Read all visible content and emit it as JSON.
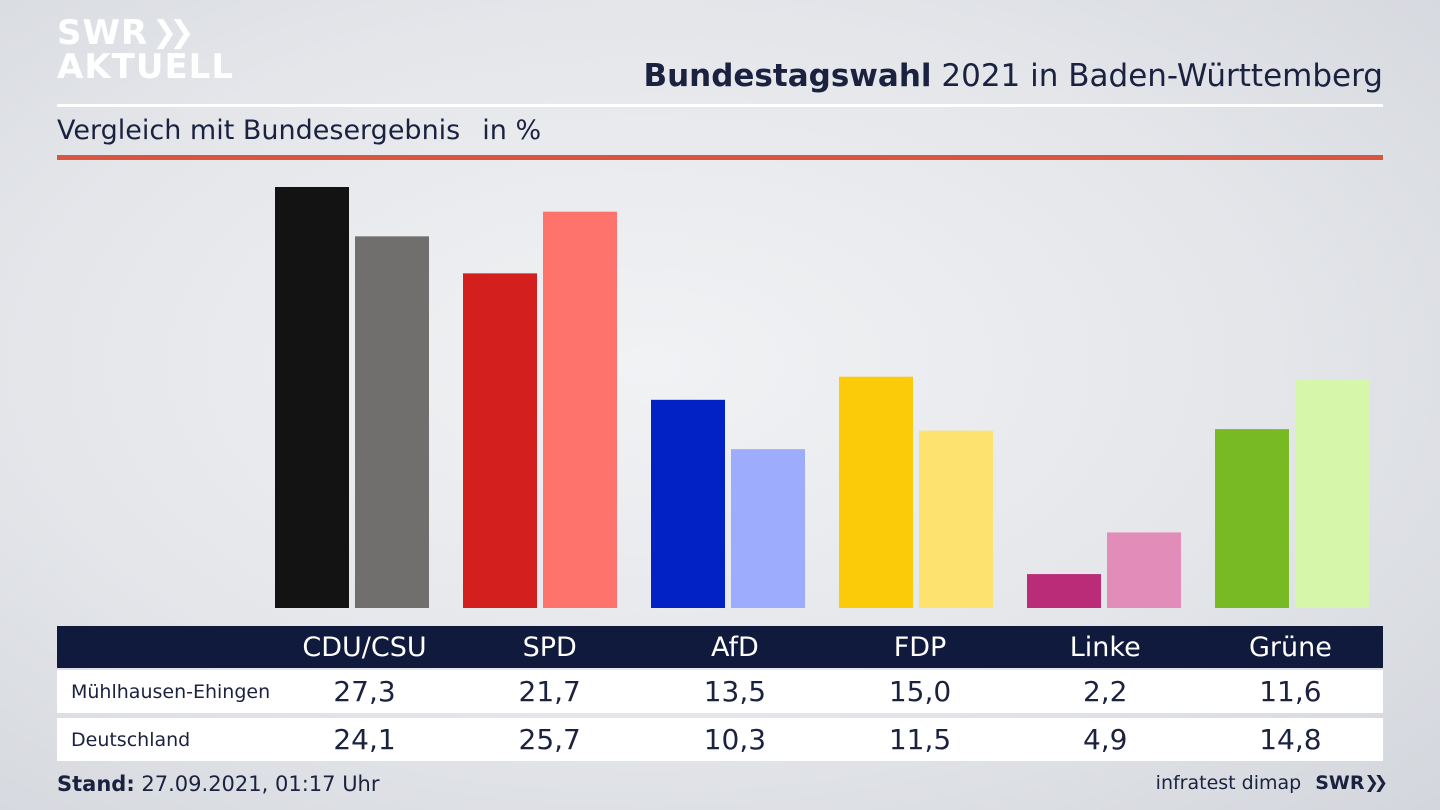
{
  "logo": {
    "line1": "SWR",
    "line2": "AKTUELL",
    "chevrons": "❯❯"
  },
  "header": {
    "title_bold": "Bundestagswahl",
    "title_rest": "2021 in Baden-Württemberg",
    "subtitle": "Vergleich mit Bundesergebnis",
    "unit": "in %"
  },
  "chart_data": {
    "type": "bar",
    "title": "Bundestagswahl 2021 in Baden-Württemberg",
    "subtitle": "Vergleich mit Bundesergebnis",
    "unit": "in %",
    "categories": [
      "CDU/CSU",
      "SPD",
      "AfD",
      "FDP",
      "Linke",
      "Grüne"
    ],
    "series": [
      {
        "name": "Mühlhausen-Ehingen",
        "values": [
          27.3,
          21.7,
          13.5,
          15.0,
          2.2,
          11.6
        ],
        "values_label": [
          "27,3",
          "21,7",
          "13,5",
          "15,0",
          "2,2",
          "11,6"
        ]
      },
      {
        "name": "Deutschland",
        "values": [
          24.1,
          25.7,
          10.3,
          11.5,
          4.9,
          14.8
        ],
        "values_label": [
          "24,1",
          "25,7",
          "10,3",
          "11,5",
          "4,9",
          "14,8"
        ]
      }
    ],
    "colors": {
      "series_1": [
        "#131313",
        "#d41f1f",
        "#0322c6",
        "#fbcb0a",
        "#bb2c78",
        "#78ba24"
      ],
      "series_2": [
        "#706f6d",
        "#fe746c",
        "#9eacfd",
        "#fde26f",
        "#e28cb9",
        "#d6f6aa"
      ]
    },
    "ylim": [
      0,
      27.3
    ],
    "grid": false,
    "legend": "table-below"
  },
  "footer": {
    "stand_label": "Stand:",
    "stand_value": "27.09.2021, 01:17 Uhr",
    "source": "infratest dimap",
    "brand": "SWR",
    "brand_chevrons": "❯❯"
  }
}
